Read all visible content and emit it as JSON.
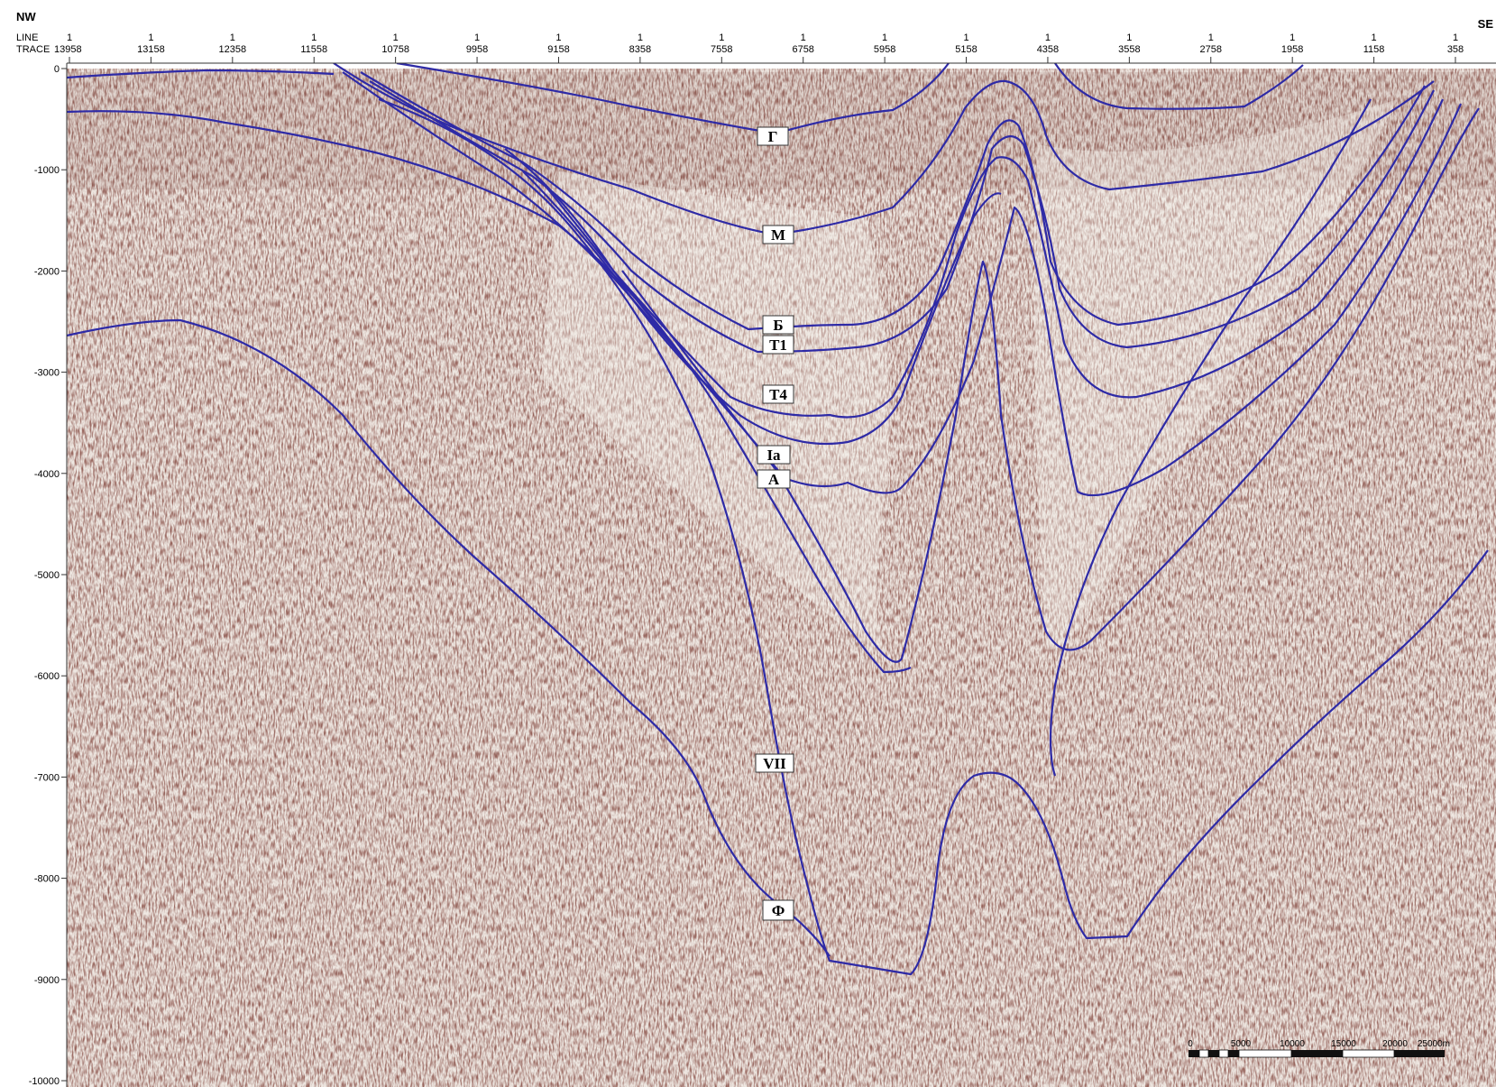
{
  "header": {
    "direction_left": "NW",
    "direction_right": "SE",
    "row_label_line": "LINE",
    "row_label_trace": "TRACE",
    "line_values": [
      "1",
      "1",
      "1",
      "1",
      "1",
      "1",
      "1",
      "1",
      "1",
      "1",
      "1",
      "1",
      "1",
      "1",
      "1",
      "1",
      "1",
      "1"
    ],
    "trace_values": [
      "13958",
      "13158",
      "12358",
      "11558",
      "10758",
      "9958",
      "9158",
      "8358",
      "7558",
      "6758",
      "5958",
      "5158",
      "4358",
      "3558",
      "2758",
      "1958",
      "1158",
      "358"
    ]
  },
  "depth_axis": {
    "tick_labels": [
      "0",
      "-1000",
      "-2000",
      "-3000",
      "-4000",
      "-5000",
      "-6000",
      "-7000",
      "-8000",
      "-9000",
      "-10000"
    ]
  },
  "horizon_labels": {
    "g": "Г",
    "m": "М",
    "b": "Б",
    "t1": "Т1",
    "t4": "Т4",
    "ia": "Ia",
    "a": "А",
    "vii": "VII",
    "f": "Ф"
  },
  "scale_bar": {
    "labels": [
      "0",
      "5000",
      "10000",
      "15000",
      "20000",
      "25000m"
    ]
  },
  "colors": {
    "horizon_line": "#2e2aa6",
    "seismic_dark": "#4a1f1a",
    "seismic_light": "#f4efea"
  }
}
